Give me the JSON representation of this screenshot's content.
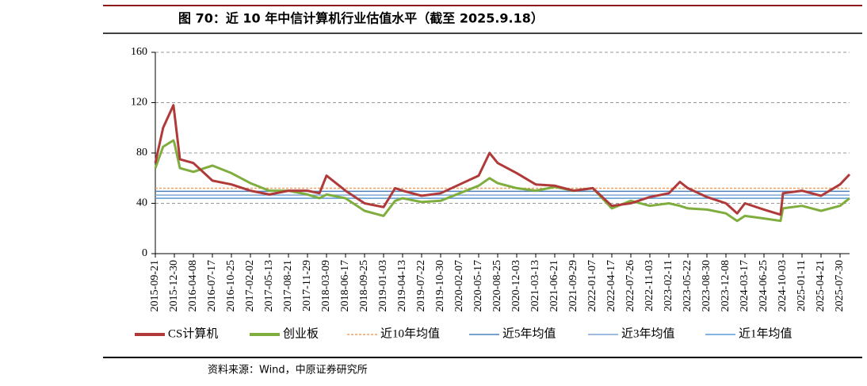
{
  "chart_data": {
    "type": "line",
    "title": "图 70：近 10 年中信计算机行业估值水平（截至 2025.9.18）",
    "source": "资料来源：Wind，中原证券研究所",
    "x": [
      "2015-09-21",
      "2015-11-01",
      "2015-12-25",
      "2015-12-30",
      "2016-01-28",
      "2016-04-08",
      "2016-07-17",
      "2016-10-25",
      "2017-02-02",
      "2017-05-13",
      "2017-08-21",
      "2017-11-29",
      "2018-01-31",
      "2018-03-09",
      "2018-06-17",
      "2018-09-25",
      "2019-01-03",
      "2019-03-05",
      "2019-04-13",
      "2019-07-22",
      "2019-10-30",
      "2020-02-07",
      "2020-05-17",
      "2020-07-13",
      "2020-08-25",
      "2020-12-03",
      "2021-03-13",
      "2021-06-21",
      "2021-09-29",
      "2022-01-07",
      "2022-04-17",
      "2022-07-26",
      "2022-11-03",
      "2023-02-11",
      "2023-04-10",
      "2023-05-22",
      "2023-08-30",
      "2023-12-08",
      "2024-02-05",
      "2024-03-17",
      "2024-06-25",
      "2024-09-20",
      "2024-10-03",
      "2025-01-11",
      "2025-04-21",
      "2025-07-30",
      "2025-09-18"
    ],
    "series": [
      {
        "name": "CS计算机",
        "color": "#b03a3a",
        "values": [
          72,
          100,
          118,
          112,
          75,
          72,
          58,
          55,
          50,
          47,
          50,
          50,
          48,
          62,
          50,
          40,
          37,
          52,
          50,
          46,
          48,
          55,
          62,
          80,
          72,
          64,
          55,
          54,
          50,
          52,
          38,
          40,
          45,
          48,
          57,
          52,
          45,
          40,
          32,
          40,
          35,
          31,
          48,
          50,
          46,
          55,
          63
        ]
      },
      {
        "name": "创业板",
        "color": "#7fae3e",
        "values": [
          68,
          85,
          90,
          88,
          68,
          65,
          70,
          64,
          56,
          50,
          50,
          47,
          44,
          47,
          44,
          34,
          30,
          42,
          44,
          41,
          42,
          48,
          54,
          60,
          56,
          52,
          50,
          53,
          50,
          52,
          36,
          42,
          38,
          40,
          38,
          36,
          35,
          32,
          26,
          30,
          28,
          26,
          36,
          38,
          34,
          38,
          44
        ]
      }
    ],
    "reference_lines": [
      {
        "name": "近10年均值",
        "value": 52,
        "color": "#f0a060",
        "dashed": true
      },
      {
        "name": "近5年均值",
        "value": 49.5,
        "color": "#4f81bd",
        "dashed": false
      },
      {
        "name": "近3年均值",
        "value": 46.5,
        "color": "#7fa7d4",
        "dashed": false
      },
      {
        "name": "近1年均值",
        "value": 44,
        "color": "#5b9bd5",
        "dashed": false
      }
    ],
    "xlim": [
      "2015-09-21",
      "2025-09-18"
    ],
    "xticks": [
      "2015-09-21",
      "2015-12-30",
      "2016-04-08",
      "2016-07-17",
      "2016-10-25",
      "2017-02-02",
      "2017-05-13",
      "2017-08-21",
      "2017-11-29",
      "2018-03-09",
      "2018-06-17",
      "2018-09-25",
      "2019-01-03",
      "2019-04-13",
      "2019-07-22",
      "2019-10-30",
      "2020-02-07",
      "2020-05-17",
      "2020-08-25",
      "2020-12-03",
      "2021-03-13",
      "2021-06-21",
      "2021-09-29",
      "2022-01-07",
      "2022-04-17",
      "2022-07-26",
      "2022-11-03",
      "2023-02-11",
      "2023-05-22",
      "2023-08-30",
      "2023-12-08",
      "2024-03-17",
      "2024-06-25",
      "2024-10-03",
      "2025-01-11",
      "2025-04-21",
      "2025-07-30"
    ],
    "ylim": [
      0,
      160
    ],
    "yticks": [
      0,
      40,
      80,
      120,
      160
    ],
    "grid": true
  }
}
